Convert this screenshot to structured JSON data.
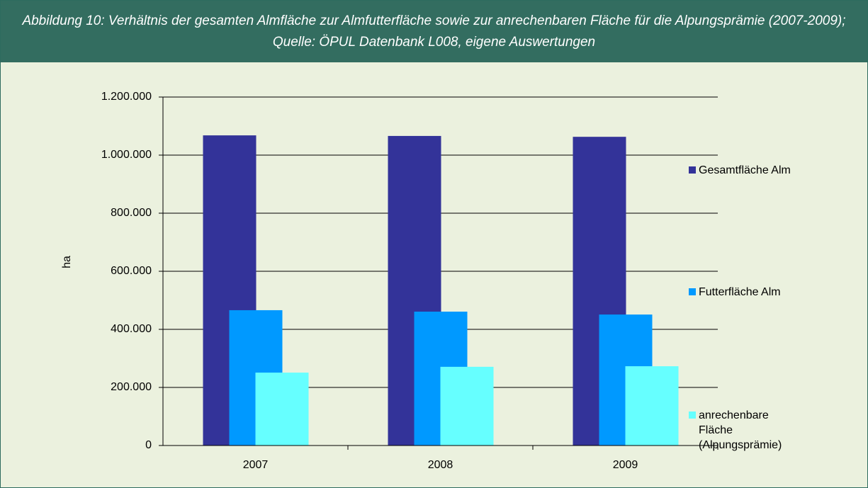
{
  "chart_data": {
    "type": "bar",
    "title": "Abbildung 10: Verhältnis der gesamten Almfläche zur Almfutterfläche sowie zur anrechenbaren Fläche für die Alpungsprämie (2007-2009); Quelle: ÖPUL Datenbank L008, eigene Auswertungen",
    "y_label": "ha",
    "categories": [
      "2007",
      "2008",
      "2009"
    ],
    "series": [
      {
        "name": "Gesamtfläche Alm",
        "color": "#333399",
        "values": [
          1068000,
          1066000,
          1063000
        ]
      },
      {
        "name": "Futterfläche Alm",
        "color": "#0099ff",
        "values": [
          466000,
          461000,
          451000
        ]
      },
      {
        "name": "anrechenbare Fläche (Alpungsprämie)",
        "color": "#66ffff",
        "values": [
          251000,
          271000,
          273000
        ]
      }
    ],
    "ylim": [
      0,
      1200000
    ],
    "yticks": [
      0,
      {
        "value": 200000,
        "label": "200.000"
      },
      {
        "value": 400000,
        "label": "400.000"
      },
      {
        "value": 600000,
        "label": "600.000"
      },
      {
        "value": 800000,
        "label": "800.000"
      },
      {
        "value": 1000000,
        "label": "1.000.000"
      },
      {
        "value": 1200000,
        "label": "1.200.000"
      }
    ],
    "grid": true,
    "legend": "right"
  }
}
